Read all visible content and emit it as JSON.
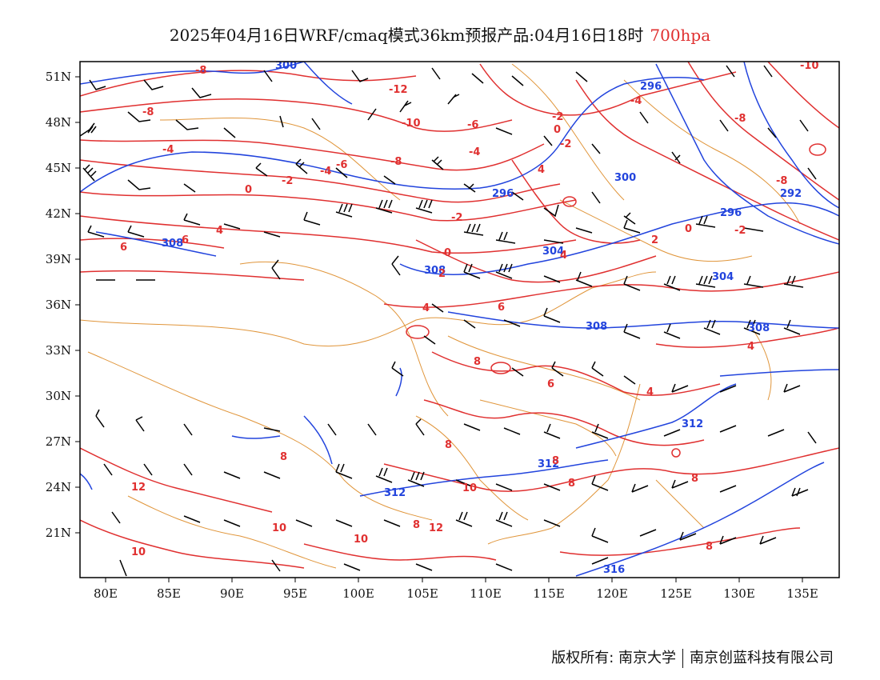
{
  "title": {
    "main": "2025年04月16日WRF/cmaq模式36km预报产品:04月16日18时",
    "level": "700hpa"
  },
  "axes": {
    "lat_labels": [
      "51N",
      "48N",
      "45N",
      "42N",
      "39N",
      "36N",
      "33N",
      "30N",
      "27N",
      "24N",
      "21N"
    ],
    "lon_labels": [
      "80E",
      "85E",
      "90E",
      "95E",
      "100E",
      "105E",
      "110E",
      "115E",
      "120E",
      "125E",
      "130E",
      "135E"
    ]
  },
  "colors": {
    "height_contour": "#2244dd",
    "temperature_contour": "#e03030",
    "boundary": "#e0953a",
    "wind_barb": "#000000",
    "level_text": "#e03030"
  },
  "height_labels": [
    "300",
    "296",
    "292",
    "304",
    "308",
    "312",
    "316"
  ],
  "temperature_labels": [
    "-8",
    "-12",
    "-10",
    "-6",
    "-4",
    "-2",
    "0",
    "2",
    "4",
    "6",
    "8",
    "10",
    "12"
  ],
  "footer": {
    "copyright": "版权所有: 南京大学",
    "company": "南京创蓝科技有限公司"
  }
}
